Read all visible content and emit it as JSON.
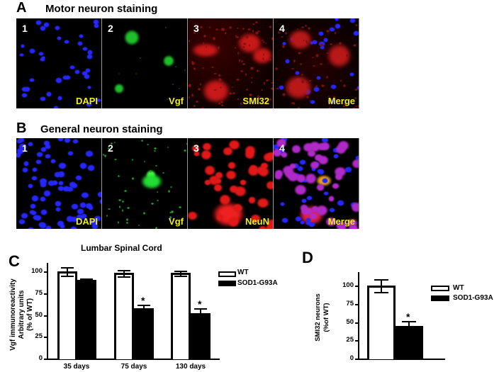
{
  "panel_a": {
    "letter": "A",
    "title": "Motor neuron staining",
    "images": [
      {
        "number": "1",
        "stain": "DAPI",
        "channel": "blue"
      },
      {
        "number": "2",
        "stain": "Vgf",
        "channel": "green"
      },
      {
        "number": "3",
        "stain": "SMI32",
        "channel": "red"
      },
      {
        "number": "4",
        "stain": "Merge",
        "channel": "merge"
      }
    ]
  },
  "panel_b": {
    "letter": "B",
    "title": "General neuron staining",
    "images": [
      {
        "number": "1",
        "stain": "DAPI",
        "channel": "blue"
      },
      {
        "number": "2",
        "stain": "Vgf",
        "channel": "green"
      },
      {
        "number": "3",
        "stain": "NeuN",
        "channel": "red"
      },
      {
        "number": "4",
        "stain": "Merge",
        "channel": "merge"
      }
    ]
  },
  "colors": {
    "stain_label": "#f2ee1a",
    "dapi": "#2626ff",
    "vgf": "#22dd33",
    "red": "#e01818",
    "wt_fill": "#ffffff",
    "sod_fill": "#000000"
  },
  "chart_data": [
    {
      "panel": "C",
      "type": "bar",
      "title": "Lumbar Spinal Cord",
      "xlabel": "",
      "ylabel": [
        "Vgf immunoreactivity",
        "Arbitrary units",
        "(% of WT)"
      ],
      "categories": [
        "35 days",
        "75 days",
        "130 days"
      ],
      "ylim": [
        0,
        110
      ],
      "yticks": [
        0,
        25,
        50,
        75,
        100
      ],
      "series": [
        {
          "name": "WT",
          "values": [
            100,
            98,
            98
          ],
          "errors": [
            5,
            4,
            3
          ]
        },
        {
          "name": "SOD1-G93A",
          "values": [
            90,
            58,
            52
          ],
          "errors": [
            2,
            4,
            6
          ]
        }
      ],
      "annotations": [
        {
          "category": "75 days",
          "series": "SOD1-G93A",
          "text": "*"
        },
        {
          "category": "130 days",
          "series": "SOD1-G93A",
          "text": "*"
        }
      ],
      "legend": {
        "position": "right",
        "entries": [
          "WT",
          "SOD1-G93A"
        ]
      }
    },
    {
      "panel": "D",
      "type": "bar",
      "title": "",
      "xlabel": "",
      "ylabel": [
        "SMI32 neurons",
        "(%of WT)"
      ],
      "categories": [
        ""
      ],
      "ylim": [
        0,
        118
      ],
      "yticks": [
        0,
        25,
        50,
        75,
        100
      ],
      "series": [
        {
          "name": "WT",
          "values": [
            100
          ],
          "errors": [
            9
          ]
        },
        {
          "name": "SOD1-G93A",
          "values": [
            45
          ],
          "errors": [
            6
          ]
        }
      ],
      "annotations": [
        {
          "series": "SOD1-G93A",
          "text": "*"
        }
      ],
      "legend": {
        "position": "right",
        "entries": [
          "WT",
          "SOD1-G93A"
        ]
      }
    }
  ],
  "panel_c": {
    "letter": "C",
    "title": "Lumbar Spinal Cord",
    "ylabel_1": "Vgf immunoreactivity",
    "ylabel_2": "Arbitrary units",
    "ylabel_3": "(% of WT)",
    "ticks": [
      "0",
      "25",
      "50",
      "75",
      "100"
    ],
    "categories": [
      "35 days",
      "75 days",
      "130 days"
    ],
    "legend_wt": "WT",
    "legend_sod": "SOD1-G93A",
    "star": "*"
  },
  "panel_d": {
    "letter": "D",
    "ylabel_1": "SMI32 neurons",
    "ylabel_2": "(%of WT)",
    "ticks": [
      "0",
      "25",
      "50",
      "75",
      "100"
    ],
    "legend_wt": "WT",
    "legend_sod": "SOD1-G93A",
    "star": "*"
  }
}
